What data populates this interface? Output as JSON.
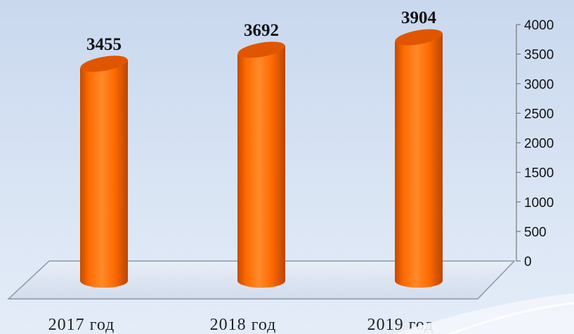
{
  "chart_data": {
    "type": "bar",
    "categories": [
      "2017 год",
      "2018 год",
      "2019 год"
    ],
    "values": [
      3455,
      3692,
      3904
    ],
    "title": "",
    "xlabel": "",
    "ylabel": "",
    "ylim": [
      0,
      4000
    ],
    "yticks": [
      0,
      500,
      1000,
      1500,
      2000,
      2500,
      3000,
      3500,
      4000
    ],
    "y_axis_side": "right",
    "style": "3d-cylinder",
    "bar_color": "#ff6a00",
    "bar_shadow_color": "#c24a00",
    "bar_top_color": "#e05600",
    "grid": false,
    "legend": "none"
  }
}
